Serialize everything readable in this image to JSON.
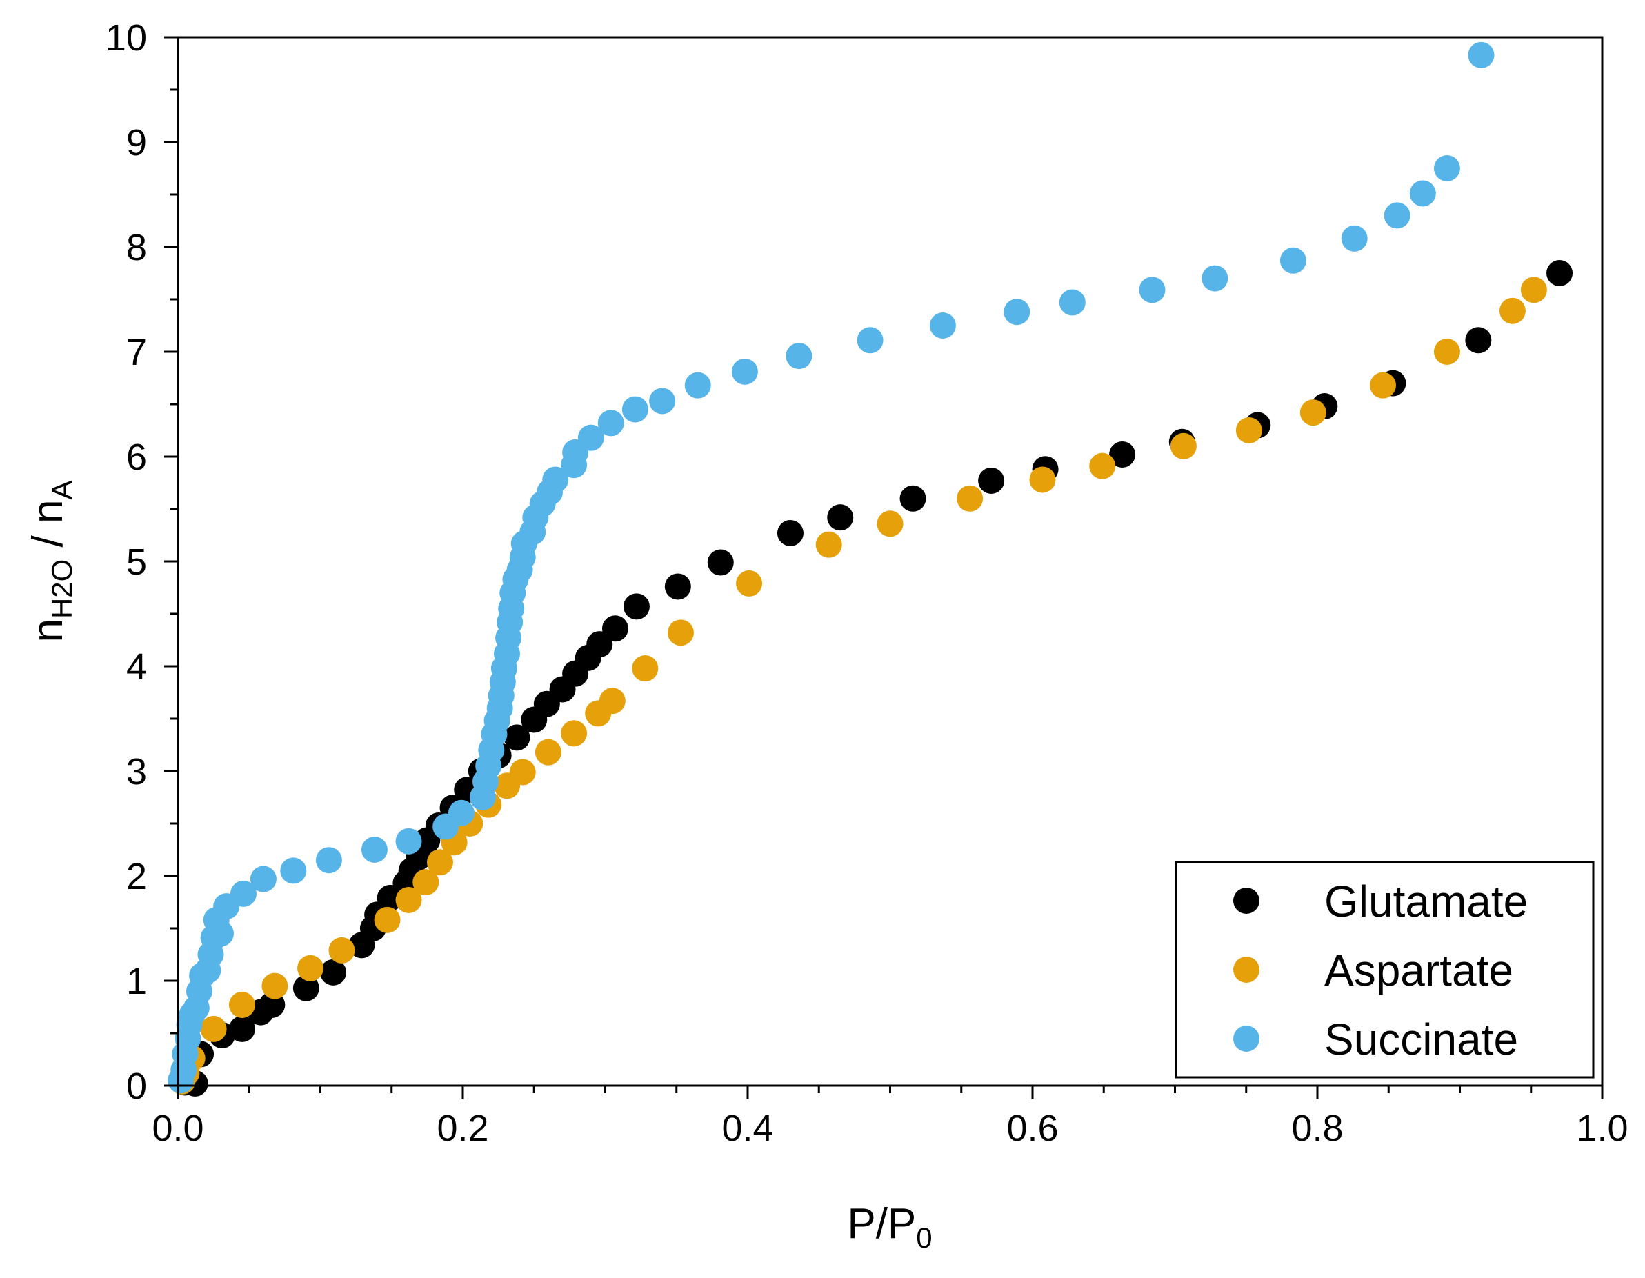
{
  "chart_data": {
    "type": "scatter",
    "title": "",
    "xlabel": {
      "main": "P/P",
      "sub": "0"
    },
    "ylabel": {
      "n": "n",
      "sub1": "H2O",
      "slash": " / n",
      "sub2": "A"
    },
    "xlim": [
      0,
      1.0
    ],
    "ylim": [
      0,
      10
    ],
    "xticks": [
      0.0,
      0.2,
      0.4,
      0.6,
      0.8,
      1.0
    ],
    "xtick_labels": [
      "0.0",
      "0.2",
      "0.4",
      "0.6",
      "0.8",
      "1.0"
    ],
    "yticks": [
      0,
      1,
      2,
      3,
      4,
      5,
      6,
      7,
      8,
      9,
      10
    ],
    "ytick_labels": [
      "0",
      "1",
      "2",
      "3",
      "4",
      "5",
      "6",
      "7",
      "8",
      "9",
      "10"
    ],
    "legend_position": "bottom-right",
    "series": [
      {
        "name": "Glutamate",
        "color": "#000000",
        "points": [
          [
            0.005,
            0.03
          ],
          [
            0.008,
            0.05
          ],
          [
            0.012,
            0.02
          ],
          [
            0.016,
            0.3
          ],
          [
            0.031,
            0.48
          ],
          [
            0.045,
            0.54
          ],
          [
            0.058,
            0.7
          ],
          [
            0.066,
            0.77
          ],
          [
            0.09,
            0.93
          ],
          [
            0.109,
            1.08
          ],
          [
            0.129,
            1.34
          ],
          [
            0.137,
            1.5
          ],
          [
            0.14,
            1.63
          ],
          [
            0.149,
            1.79
          ],
          [
            0.16,
            1.93
          ],
          [
            0.164,
            2.05
          ],
          [
            0.169,
            2.18
          ],
          [
            0.175,
            2.34
          ],
          [
            0.183,
            2.48
          ],
          [
            0.193,
            2.65
          ],
          [
            0.203,
            2.82
          ],
          [
            0.213,
            3.0
          ],
          [
            0.225,
            3.15
          ],
          [
            0.238,
            3.32
          ],
          [
            0.25,
            3.49
          ],
          [
            0.259,
            3.64
          ],
          [
            0.27,
            3.78
          ],
          [
            0.279,
            3.93
          ],
          [
            0.288,
            4.08
          ],
          [
            0.296,
            4.21
          ],
          [
            0.307,
            4.36
          ],
          [
            0.322,
            4.57
          ],
          [
            0.351,
            4.76
          ],
          [
            0.381,
            4.99
          ],
          [
            0.43,
            5.27
          ],
          [
            0.465,
            5.42
          ],
          [
            0.516,
            5.6
          ],
          [
            0.571,
            5.77
          ],
          [
            0.609,
            5.88
          ],
          [
            0.663,
            6.02
          ],
          [
            0.705,
            6.14
          ],
          [
            0.758,
            6.3
          ],
          [
            0.805,
            6.48
          ],
          [
            0.853,
            6.7
          ],
          [
            0.913,
            7.11
          ],
          [
            0.97,
            7.75
          ]
        ]
      },
      {
        "name": "Aspartate",
        "color": "#e6a10a",
        "points": [
          [
            0.003,
            0.04
          ],
          [
            0.006,
            0.12
          ],
          [
            0.01,
            0.26
          ],
          [
            0.025,
            0.54
          ],
          [
            0.045,
            0.77
          ],
          [
            0.068,
            0.95
          ],
          [
            0.093,
            1.12
          ],
          [
            0.115,
            1.29
          ],
          [
            0.147,
            1.58
          ],
          [
            0.162,
            1.77
          ],
          [
            0.174,
            1.94
          ],
          [
            0.184,
            2.13
          ],
          [
            0.194,
            2.32
          ],
          [
            0.205,
            2.5
          ],
          [
            0.218,
            2.68
          ],
          [
            0.231,
            2.86
          ],
          [
            0.242,
            2.99
          ],
          [
            0.26,
            3.18
          ],
          [
            0.278,
            3.36
          ],
          [
            0.295,
            3.55
          ],
          [
            0.305,
            3.67
          ],
          [
            0.328,
            3.98
          ],
          [
            0.353,
            4.32
          ],
          [
            0.401,
            4.79
          ],
          [
            0.457,
            5.16
          ],
          [
            0.5,
            5.36
          ],
          [
            0.556,
            5.6
          ],
          [
            0.607,
            5.78
          ],
          [
            0.649,
            5.91
          ],
          [
            0.706,
            6.1
          ],
          [
            0.752,
            6.25
          ],
          [
            0.797,
            6.42
          ],
          [
            0.846,
            6.68
          ],
          [
            0.891,
            7.0
          ],
          [
            0.937,
            7.39
          ],
          [
            0.952,
            7.59
          ]
        ]
      },
      {
        "name": "Succinate",
        "color": "#56b4e9",
        "points": [
          [
            0.002,
            0.05
          ],
          [
            0.004,
            0.15
          ],
          [
            0.005,
            0.3
          ],
          [
            0.007,
            0.45
          ],
          [
            0.008,
            0.58
          ],
          [
            0.01,
            0.68
          ],
          [
            0.013,
            0.74
          ],
          [
            0.015,
            0.9
          ],
          [
            0.017,
            1.05
          ],
          [
            0.021,
            1.1
          ],
          [
            0.023,
            1.25
          ],
          [
            0.025,
            1.41
          ],
          [
            0.027,
            1.58
          ],
          [
            0.03,
            1.45
          ],
          [
            0.034,
            1.71
          ],
          [
            0.046,
            1.83
          ],
          [
            0.06,
            1.97
          ],
          [
            0.081,
            2.05
          ],
          [
            0.106,
            2.15
          ],
          [
            0.138,
            2.25
          ],
          [
            0.162,
            2.33
          ],
          [
            0.188,
            2.47
          ],
          [
            0.199,
            2.6
          ],
          [
            0.214,
            2.75
          ],
          [
            0.216,
            2.9
          ],
          [
            0.218,
            3.05
          ],
          [
            0.22,
            3.2
          ],
          [
            0.222,
            3.35
          ],
          [
            0.224,
            3.48
          ],
          [
            0.226,
            3.6
          ],
          [
            0.227,
            3.72
          ],
          [
            0.228,
            3.85
          ],
          [
            0.229,
            3.98
          ],
          [
            0.231,
            4.12
          ],
          [
            0.232,
            4.27
          ],
          [
            0.233,
            4.42
          ],
          [
            0.234,
            4.55
          ],
          [
            0.235,
            4.7
          ],
          [
            0.237,
            4.83
          ],
          [
            0.24,
            4.92
          ],
          [
            0.242,
            5.04
          ],
          [
            0.243,
            5.17
          ],
          [
            0.249,
            5.28
          ],
          [
            0.251,
            5.42
          ],
          [
            0.256,
            5.55
          ],
          [
            0.261,
            5.66
          ],
          [
            0.265,
            5.78
          ],
          [
            0.278,
            5.92
          ],
          [
            0.279,
            6.04
          ],
          [
            0.29,
            6.18
          ],
          [
            0.304,
            6.32
          ],
          [
            0.321,
            6.45
          ],
          [
            0.34,
            6.53
          ],
          [
            0.365,
            6.68
          ],
          [
            0.398,
            6.81
          ],
          [
            0.436,
            6.96
          ],
          [
            0.486,
            7.11
          ],
          [
            0.537,
            7.25
          ],
          [
            0.589,
            7.38
          ],
          [
            0.628,
            7.47
          ],
          [
            0.684,
            7.59
          ],
          [
            0.728,
            7.7
          ],
          [
            0.783,
            7.87
          ],
          [
            0.826,
            8.08
          ],
          [
            0.856,
            8.3
          ],
          [
            0.874,
            8.51
          ],
          [
            0.891,
            8.75
          ],
          [
            0.915,
            9.83
          ]
        ]
      }
    ]
  }
}
